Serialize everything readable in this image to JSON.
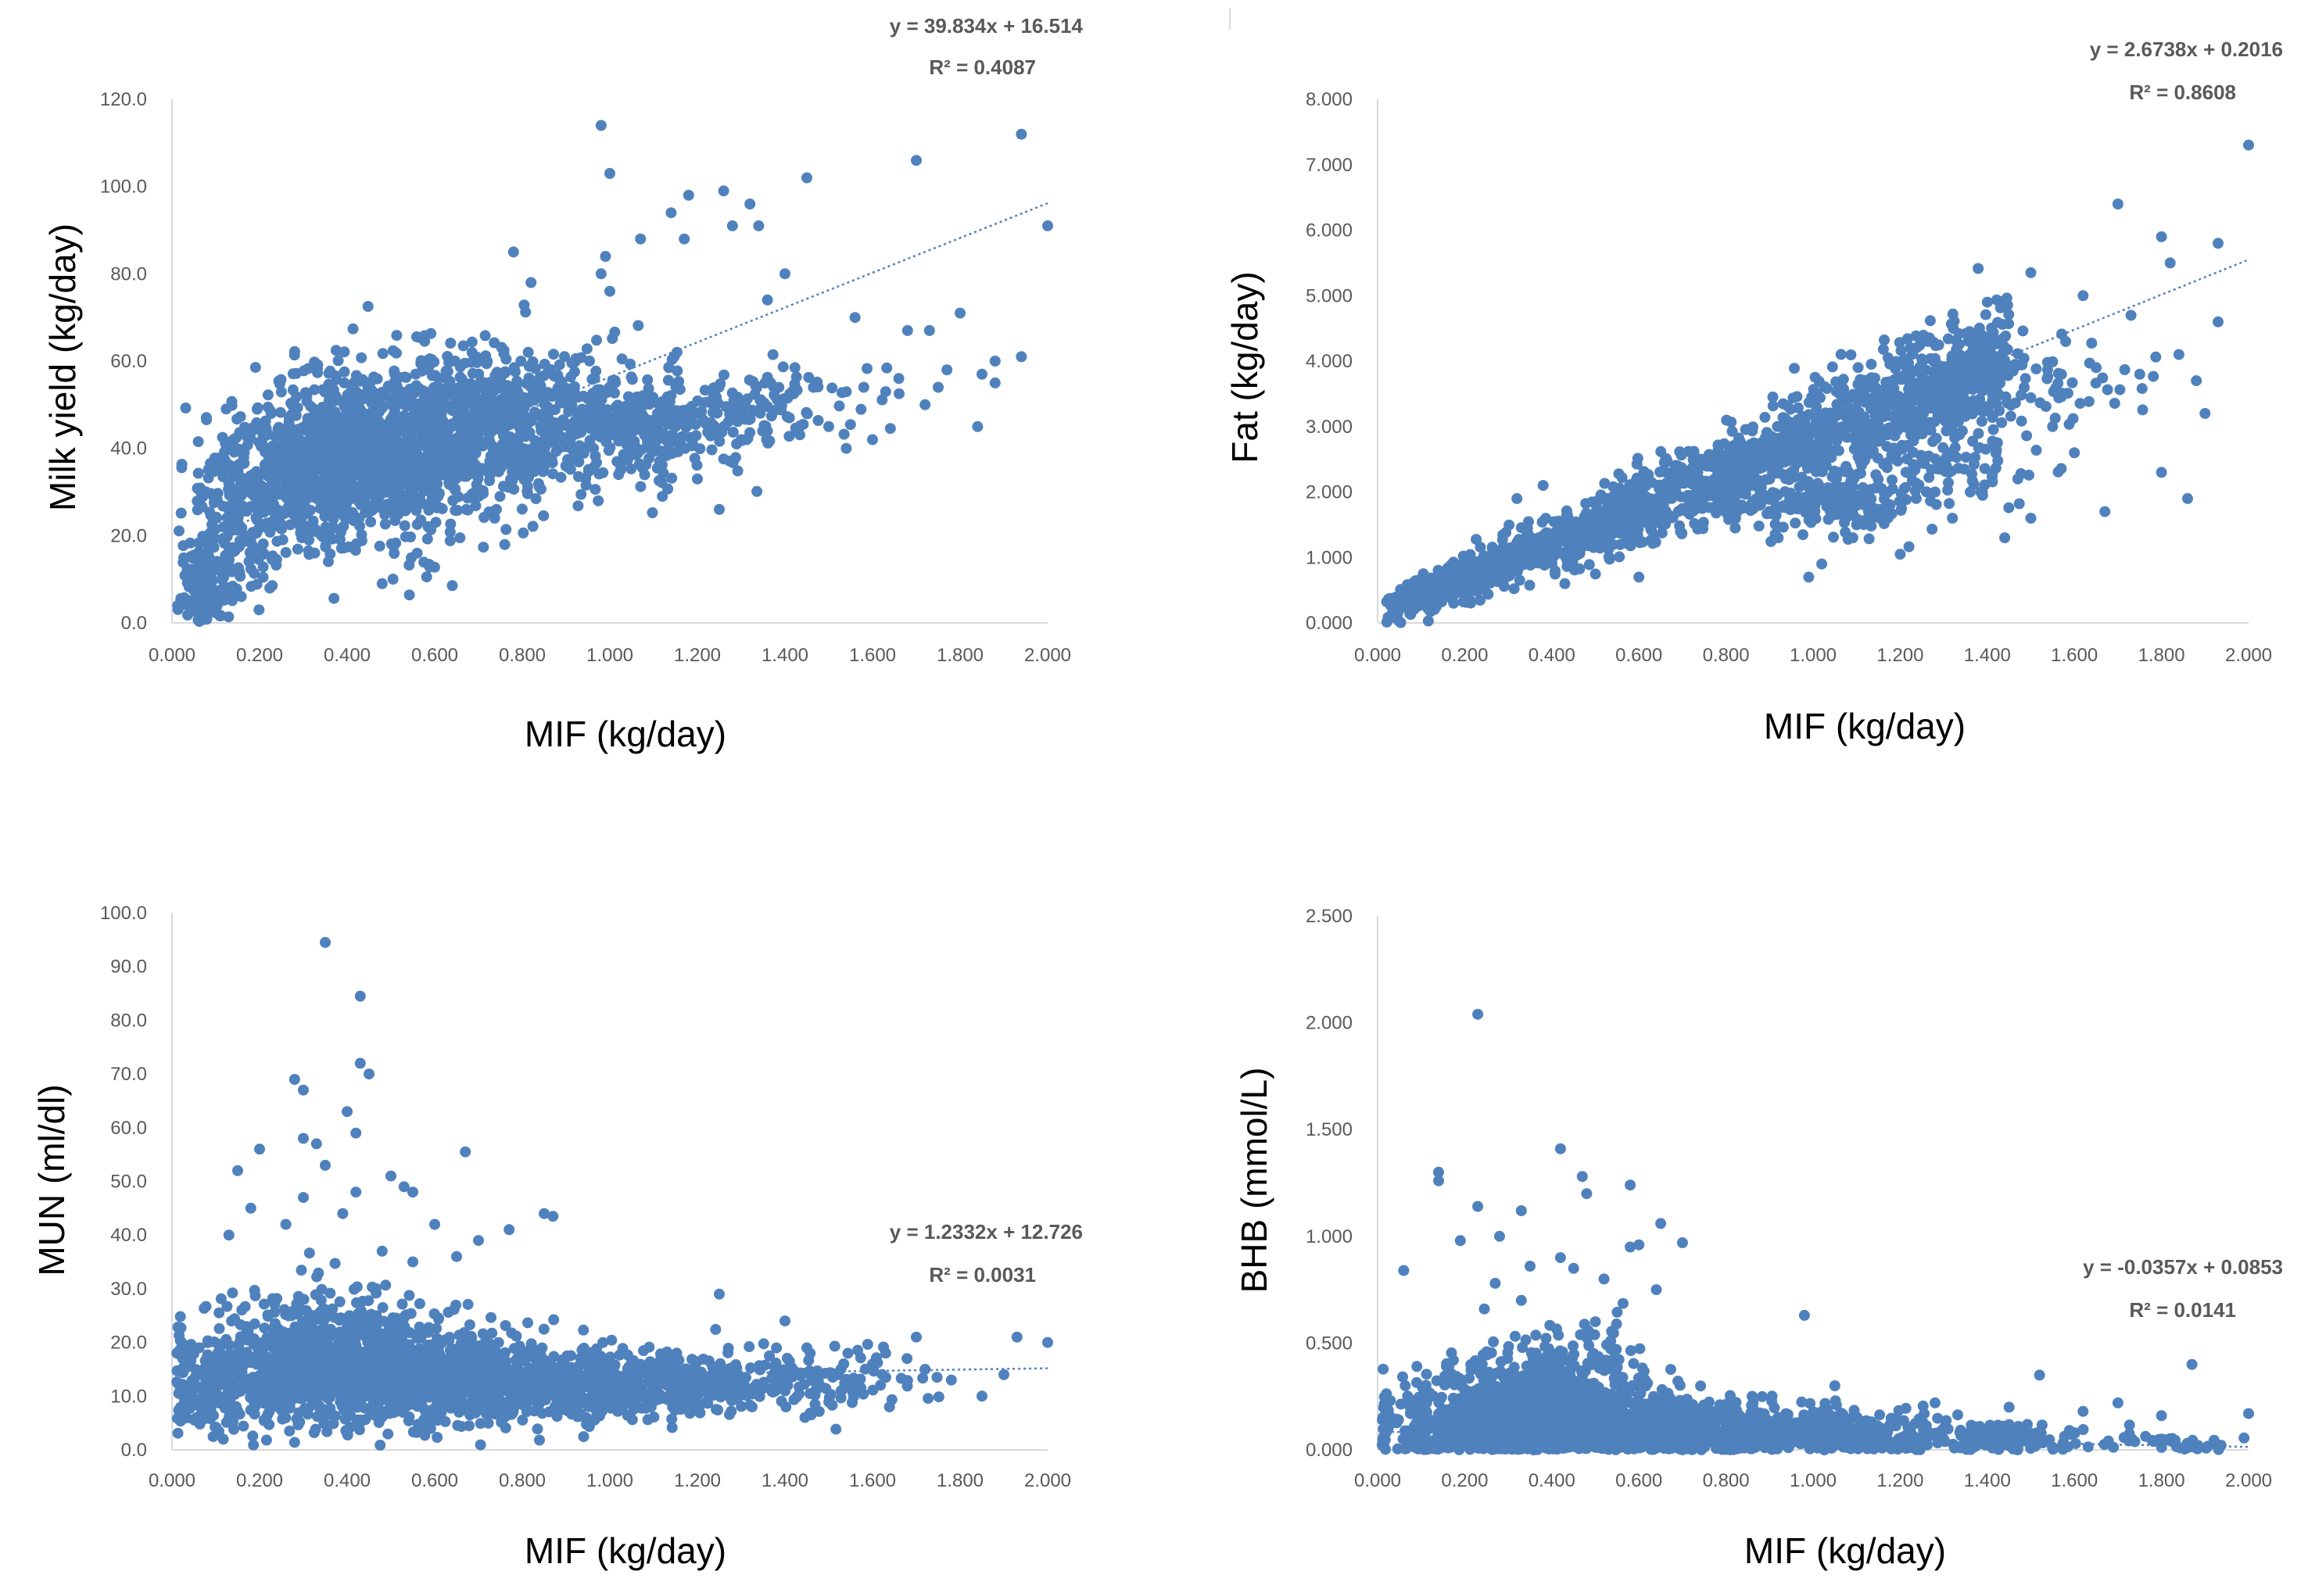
{
  "colors": {
    "point": "#4f81bd",
    "trend": "#4f81bd",
    "axis": "#d9d9d9",
    "tick_text": "#595959"
  },
  "chart_data": [
    {
      "type": "scatter",
      "xlabel": "MIF (kg/day)",
      "ylabel": "Milk yield (kg/day)",
      "xlim": [
        0,
        2.0
      ],
      "ylim": [
        0,
        120
      ],
      "x_ticks": [
        "0.000",
        "0.200",
        "0.400",
        "0.600",
        "0.800",
        "1.000",
        "1.200",
        "1.400",
        "1.600",
        "1.800",
        "2.000"
      ],
      "y_ticks": [
        "0.0",
        "20.0",
        "40.0",
        "60.0",
        "80.0",
        "100.0",
        "120.0"
      ],
      "trendline": {
        "slope": 39.834,
        "intercept": 16.514,
        "x_range": [
          0.02,
          2.0
        ]
      },
      "equation": "y = 39.834x + 16.514",
      "r2": "R² = 0.4087",
      "points": [
        [
          0.98,
          114
        ],
        [
          1.94,
          112
        ],
        [
          1.0,
          103
        ],
        [
          1.7,
          106
        ],
        [
          1.45,
          102
        ],
        [
          1.26,
          99
        ],
        [
          1.18,
          98
        ],
        [
          1.32,
          96
        ],
        [
          1.14,
          94
        ],
        [
          1.34,
          91
        ],
        [
          1.28,
          91
        ],
        [
          2.0,
          91
        ],
        [
          1.07,
          88
        ],
        [
          1.17,
          88
        ],
        [
          0.99,
          84
        ],
        [
          0.78,
          85
        ],
        [
          1.4,
          80
        ],
        [
          0.98,
          80
        ],
        [
          1.36,
          74
        ],
        [
          1.0,
          76
        ],
        [
          1.8,
          71
        ],
        [
          1.56,
          70
        ],
        [
          1.73,
          67
        ],
        [
          1.68,
          67
        ],
        [
          1.94,
          61
        ],
        [
          1.88,
          60
        ],
        [
          1.77,
          58
        ],
        [
          1.66,
          56
        ],
        [
          1.88,
          55
        ],
        [
          1.63,
          53
        ],
        [
          1.58,
          54
        ],
        [
          1.72,
          50
        ],
        [
          1.75,
          54
        ],
        [
          1.84,
          45
        ],
        [
          1.6,
          42
        ],
        [
          1.54,
          40
        ],
        [
          1.5,
          45
        ],
        [
          1.45,
          48
        ],
        [
          1.41,
          47
        ],
        [
          1.36,
          44
        ],
        [
          1.3,
          42
        ],
        [
          1.25,
          26
        ],
        [
          1.12,
          29
        ],
        [
          1.02,
          34
        ],
        [
          0.56,
          16
        ],
        [
          0.48,
          9
        ],
        [
          0.82,
          78
        ],
        [
          1.2,
          33
        ],
        [
          1.47,
          55
        ],
        [
          1.85,
          57
        ]
      ],
      "clouds": [
        {
          "cx": 0.5,
          "cy": 40,
          "sx": 0.16,
          "sy": 10,
          "n": 900
        },
        {
          "cx": 0.35,
          "cy": 36,
          "sx": 0.1,
          "sy": 9,
          "n": 500
        },
        {
          "cx": 0.78,
          "cy": 47,
          "sx": 0.15,
          "sy": 8,
          "n": 500
        },
        {
          "cx": 1.08,
          "cy": 45,
          "sx": 0.1,
          "sy": 6,
          "n": 250
        },
        {
          "cx": 1.35,
          "cy": 50,
          "sx": 0.12,
          "sy": 5,
          "n": 120
        },
        {
          "cx": 0.15,
          "cy": 25,
          "sx": 0.05,
          "sy": 9,
          "n": 200
        },
        {
          "cx": 0.07,
          "cy": 8,
          "sx": 0.03,
          "sy": 5,
          "n": 120
        }
      ]
    },
    {
      "type": "scatter",
      "xlabel": "MIF (kg/day)",
      "ylabel": "Fat (kg/day)",
      "xlim": [
        0,
        2.0
      ],
      "ylim": [
        0,
        8
      ],
      "x_ticks": [
        "0.000",
        "0.200",
        "0.400",
        "0.600",
        "0.800",
        "1.000",
        "1.200",
        "1.400",
        "1.600",
        "1.800",
        "2.000"
      ],
      "y_ticks": [
        "0.000",
        "1.000",
        "2.000",
        "3.000",
        "4.000",
        "5.000",
        "6.000",
        "7.000",
        "8.000"
      ],
      "trendline": {
        "slope": 2.6738,
        "intercept": 0.2016,
        "x_range": [
          0.02,
          2.0
        ]
      },
      "equation": "y = 2.6738x + 0.2016",
      "r2": "R² = 0.8608",
      "points": [
        [
          2.0,
          7.3
        ],
        [
          1.7,
          6.4
        ],
        [
          1.8,
          5.9
        ],
        [
          1.93,
          5.8
        ],
        [
          1.82,
          5.5
        ],
        [
          1.73,
          4.7
        ],
        [
          1.62,
          5.0
        ],
        [
          1.5,
          5.35
        ],
        [
          1.93,
          4.6
        ],
        [
          1.9,
          3.2
        ],
        [
          1.86,
          1.9
        ],
        [
          1.8,
          2.3
        ],
        [
          1.67,
          1.7
        ],
        [
          1.5,
          1.6
        ],
        [
          1.44,
          1.3
        ],
        [
          1.32,
          1.6
        ],
        [
          1.2,
          1.05
        ],
        [
          1.02,
          0.9
        ],
        [
          0.99,
          0.7
        ],
        [
          0.6,
          0.7
        ],
        [
          0.43,
          0.6
        ],
        [
          1.75,
          3.8
        ],
        [
          1.84,
          4.1
        ],
        [
          1.58,
          4.3
        ],
        [
          1.4,
          4.9
        ],
        [
          1.6,
          2.6
        ],
        [
          1.55,
          3.0
        ],
        [
          1.28,
          2.0
        ],
        [
          1.1,
          1.5
        ],
        [
          0.92,
          1.3
        ],
        [
          0.38,
          2.1
        ],
        [
          0.32,
          1.9
        ],
        [
          1.47,
          2.2
        ],
        [
          1.88,
          3.7
        ],
        [
          1.65,
          3.9
        ]
      ],
      "clouds": [
        {
          "trend": true,
          "x0": 0.02,
          "x1": 1.45,
          "slope": 2.65,
          "intercept": 0.15,
          "sy": 0.28,
          "n": 1800
        },
        {
          "cx": 1.05,
          "cy": 1.8,
          "sx": 0.12,
          "sy": 0.25,
          "n": 150
        },
        {
          "cx": 1.3,
          "cy": 2.3,
          "sx": 0.12,
          "sy": 0.3,
          "n": 80
        },
        {
          "cx": 1.45,
          "cy": 3.7,
          "sx": 0.15,
          "sy": 0.4,
          "n": 100
        }
      ]
    },
    {
      "type": "scatter",
      "xlabel": "MIF (kg/day)",
      "ylabel": "MUN (ml/dl)",
      "xlim": [
        0,
        2.0
      ],
      "ylim": [
        0,
        100
      ],
      "x_ticks": [
        "0.000",
        "0.200",
        "0.400",
        "0.600",
        "0.800",
        "1.000",
        "1.200",
        "1.400",
        "1.600",
        "1.800",
        "2.000"
      ],
      "y_ticks": [
        "0.0",
        "10.0",
        "20.0",
        "30.0",
        "40.0",
        "50.0",
        "60.0",
        "70.0",
        "80.0",
        "90.0",
        "100.0"
      ],
      "trendline": {
        "slope": 1.2332,
        "intercept": 12.726,
        "x_range": [
          0.02,
          2.0
        ]
      },
      "equation": "y = 1.2332x + 12.726",
      "r2": "R² = 0.0031",
      "points": [
        [
          0.35,
          94.5
        ],
        [
          0.43,
          84.5
        ],
        [
          0.43,
          72
        ],
        [
          0.45,
          70
        ],
        [
          0.28,
          69
        ],
        [
          0.3,
          67
        ],
        [
          0.4,
          63
        ],
        [
          0.3,
          58
        ],
        [
          0.33,
          57
        ],
        [
          0.2,
          56
        ],
        [
          0.67,
          55.5
        ],
        [
          0.42,
          59
        ],
        [
          0.35,
          53
        ],
        [
          0.15,
          52
        ],
        [
          0.5,
          51
        ],
        [
          0.53,
          49
        ],
        [
          0.55,
          48
        ],
        [
          0.42,
          48
        ],
        [
          0.3,
          47
        ],
        [
          0.85,
          44
        ],
        [
          0.87,
          43.5
        ],
        [
          0.18,
          45
        ],
        [
          0.39,
          44
        ],
        [
          0.77,
          41
        ],
        [
          0.6,
          42
        ],
        [
          0.7,
          39
        ],
        [
          0.26,
          42
        ],
        [
          0.13,
          40
        ],
        [
          0.48,
          37
        ],
        [
          0.65,
          36
        ],
        [
          0.55,
          35
        ],
        [
          1.25,
          29
        ],
        [
          1.45,
          19
        ],
        [
          1.63,
          18
        ],
        [
          1.7,
          21
        ],
        [
          1.93,
          21
        ],
        [
          2.0,
          20
        ],
        [
          1.9,
          14
        ],
        [
          1.85,
          10
        ],
        [
          1.55,
          12
        ],
        [
          1.6,
          16
        ],
        [
          1.72,
          15
        ],
        [
          1.78,
          13
        ],
        [
          1.4,
          24
        ]
      ],
      "clouds": [
        {
          "cx": 0.45,
          "cy": 14,
          "sx": 0.2,
          "sy": 5,
          "n": 1100
        },
        {
          "cx": 0.35,
          "cy": 18,
          "sx": 0.12,
          "sy": 6,
          "n": 350
        },
        {
          "cx": 0.8,
          "cy": 12,
          "sx": 0.15,
          "sy": 3.5,
          "n": 450
        },
        {
          "cx": 1.1,
          "cy": 12,
          "sx": 0.13,
          "sy": 3,
          "n": 350
        },
        {
          "cx": 1.45,
          "cy": 13,
          "sx": 0.12,
          "sy": 3,
          "n": 130
        },
        {
          "cx": 0.1,
          "cy": 11,
          "sx": 0.05,
          "sy": 5,
          "n": 150
        }
      ]
    },
    {
      "type": "scatter",
      "xlabel": "MIF (kg/day)",
      "ylabel": "BHB (mmol/L)",
      "xlim": [
        0,
        2.0
      ],
      "ylim": [
        0,
        2.5
      ],
      "x_ticks": [
        "0.000",
        "0.200",
        "0.400",
        "0.600",
        "0.800",
        "1.000",
        "1.200",
        "1.400",
        "1.600",
        "1.800",
        "2.000"
      ],
      "y_ticks": [
        "0.000",
        "0.500",
        "1.000",
        "1.500",
        "2.000",
        "2.500"
      ],
      "trendline": {
        "slope": -0.0357,
        "intercept": 0.0853,
        "x_range": [
          0.02,
          2.0
        ]
      },
      "equation": "y = -0.0357x + 0.0853",
      "r2": "R² = 0.0141",
      "points": [
        [
          0.23,
          2.04
        ],
        [
          0.42,
          1.41
        ],
        [
          0.14,
          1.3
        ],
        [
          0.14,
          1.26
        ],
        [
          0.47,
          1.28
        ],
        [
          0.58,
          1.24
        ],
        [
          0.48,
          1.2
        ],
        [
          0.23,
          1.14
        ],
        [
          0.33,
          1.12
        ],
        [
          0.65,
          1.06
        ],
        [
          0.7,
          0.97
        ],
        [
          0.6,
          0.96
        ],
        [
          0.58,
          0.95
        ],
        [
          0.28,
          1.0
        ],
        [
          0.42,
          0.9
        ],
        [
          0.45,
          0.85
        ],
        [
          0.19,
          0.98
        ],
        [
          0.35,
          0.86
        ],
        [
          0.52,
          0.8
        ],
        [
          0.06,
          0.84
        ],
        [
          0.64,
          0.75
        ],
        [
          0.33,
          0.7
        ],
        [
          0.98,
          0.63
        ],
        [
          0.27,
          0.78
        ],
        [
          0.5,
          0.6
        ],
        [
          1.87,
          0.4
        ],
        [
          1.52,
          0.35
        ],
        [
          1.7,
          0.22
        ],
        [
          2.0,
          0.17
        ],
        [
          1.62,
          0.18
        ],
        [
          1.8,
          0.16
        ],
        [
          1.45,
          0.2
        ],
        [
          1.28,
          0.22
        ],
        [
          1.05,
          0.3
        ]
      ],
      "clouds": [
        {
          "cx": 0.35,
          "cy": 0.13,
          "sx": 0.17,
          "sy": 0.1,
          "n": 1100
        },
        {
          "cx": 0.4,
          "cy": 0.3,
          "sx": 0.12,
          "sy": 0.13,
          "n": 300
        },
        {
          "cx": 0.75,
          "cy": 0.1,
          "sx": 0.15,
          "sy": 0.07,
          "n": 450
        },
        {
          "cx": 1.05,
          "cy": 0.07,
          "sx": 0.13,
          "sy": 0.05,
          "n": 300
        },
        {
          "cx": 1.4,
          "cy": 0.05,
          "sx": 0.13,
          "sy": 0.04,
          "n": 130
        },
        {
          "cx": 1.8,
          "cy": 0.04,
          "sx": 0.1,
          "sy": 0.03,
          "n": 40
        }
      ]
    }
  ]
}
